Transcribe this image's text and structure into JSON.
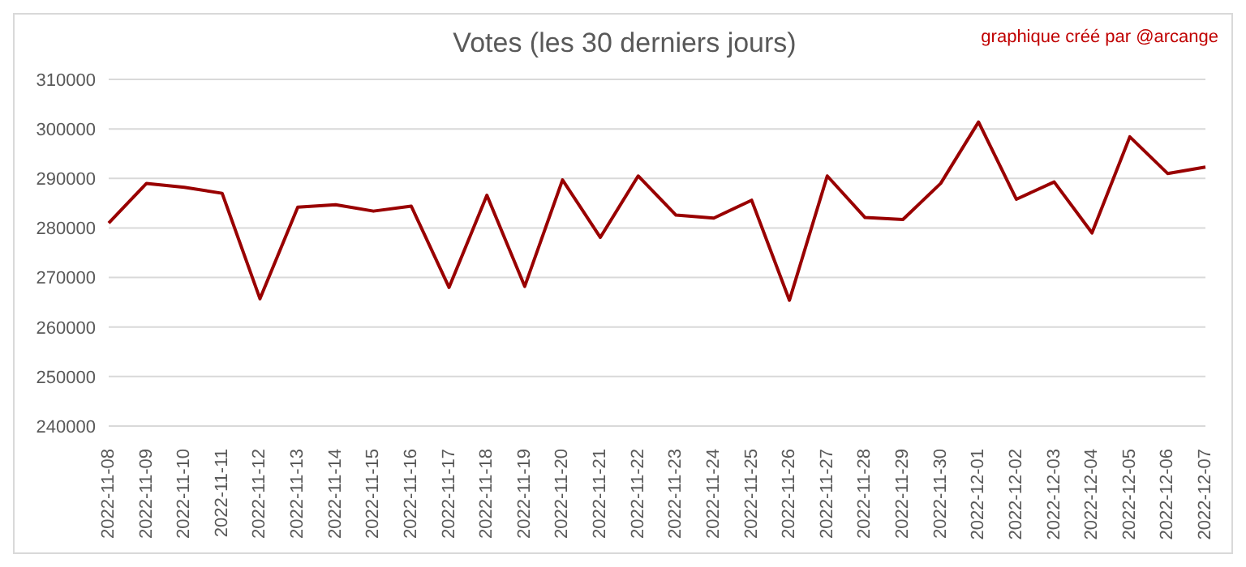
{
  "chart_data": {
    "type": "line",
    "title": "Votes (les 30 derniers jours)",
    "annotations": [
      "graphique créé par @arcange"
    ],
    "categories": [
      "2022-11-08",
      "2022-11-09",
      "2022-11-10",
      "2022-11-11",
      "2022-11-12",
      "2022-11-13",
      "2022-11-14",
      "2022-11-15",
      "2022-11-16",
      "2022-11-17",
      "2022-11-18",
      "2022-11-19",
      "2022-11-20",
      "2022-11-21",
      "2022-11-22",
      "2022-11-23",
      "2022-11-24",
      "2022-11-25",
      "2022-11-26",
      "2022-11-27",
      "2022-11-28",
      "2022-11-29",
      "2022-11-30",
      "2022-12-01",
      "2022-12-02",
      "2022-12-03",
      "2022-12-04",
      "2022-12-05",
      "2022-12-06",
      "2022-12-07"
    ],
    "series": [
      {
        "color": "#990000",
        "values": [
          281000,
          289000,
          288200,
          287000,
          265700,
          284200,
          284700,
          283400,
          284400,
          268000,
          286600,
          268200,
          289700,
          278100,
          290500,
          282600,
          282000,
          285600,
          265400,
          290500,
          282100,
          281700,
          289000,
          301400,
          285800,
          289300,
          279000,
          298400,
          291000,
          292300
        ]
      }
    ],
    "ylim": [
      240000,
      310000
    ],
    "yticks": [
      240000,
      250000,
      260000,
      270000,
      280000,
      290000,
      300000,
      310000
    ],
    "grid": "y",
    "legend": false,
    "marker": "none",
    "line_style": "solid"
  }
}
